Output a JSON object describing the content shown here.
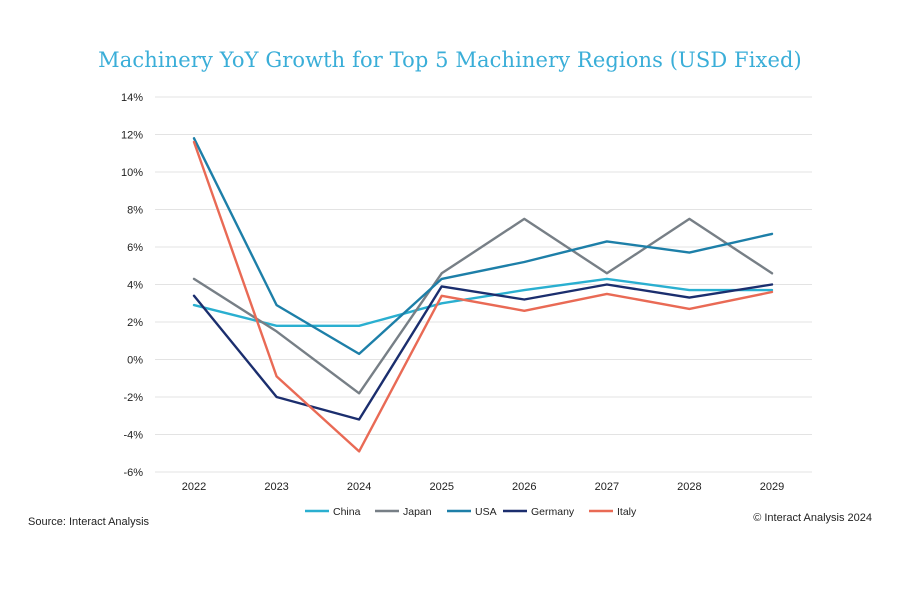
{
  "chart_data": {
    "type": "line",
    "title": "Machinery YoY Growth for Top 5 Machinery Regions (USD Fixed)",
    "xlabel": "",
    "ylabel": "",
    "x": [
      "2022",
      "2023",
      "2024",
      "2025",
      "2026",
      "2027",
      "2028",
      "2029"
    ],
    "ylim": [
      -6,
      14
    ],
    "yticks": [
      -6,
      -4,
      -2,
      0,
      2,
      4,
      6,
      8,
      10,
      12,
      14
    ],
    "ytick_labels": [
      "-6%",
      "-4%",
      "-2%",
      "0%",
      "2%",
      "4%",
      "6%",
      "8%",
      "10%",
      "12%",
      "14%"
    ],
    "grid": true,
    "legend_position": "bottom",
    "series": [
      {
        "name": "China",
        "color": "#2aafd0",
        "values": [
          2.9,
          1.8,
          1.8,
          3.0,
          3.7,
          4.3,
          3.7,
          3.7
        ]
      },
      {
        "name": "Japan",
        "color": "#777f86",
        "values": [
          4.3,
          1.5,
          -1.8,
          4.6,
          7.5,
          4.6,
          7.5,
          4.6
        ]
      },
      {
        "name": "USA",
        "color": "#1d7fa8",
        "values": [
          11.8,
          2.9,
          0.3,
          4.3,
          5.2,
          6.3,
          5.7,
          6.7
        ]
      },
      {
        "name": "Germany",
        "color": "#1b2e6e",
        "values": [
          3.4,
          -2.0,
          -3.2,
          3.9,
          3.2,
          4.0,
          3.3,
          4.0
        ]
      },
      {
        "name": "Italy",
        "color": "#e96a55",
        "values": [
          11.6,
          -0.9,
          -4.9,
          3.4,
          2.6,
          3.5,
          2.7,
          3.6
        ]
      }
    ]
  },
  "footer": {
    "source": "Source: Interact Analysis",
    "copyright": "© Interact Analysis 2024"
  }
}
